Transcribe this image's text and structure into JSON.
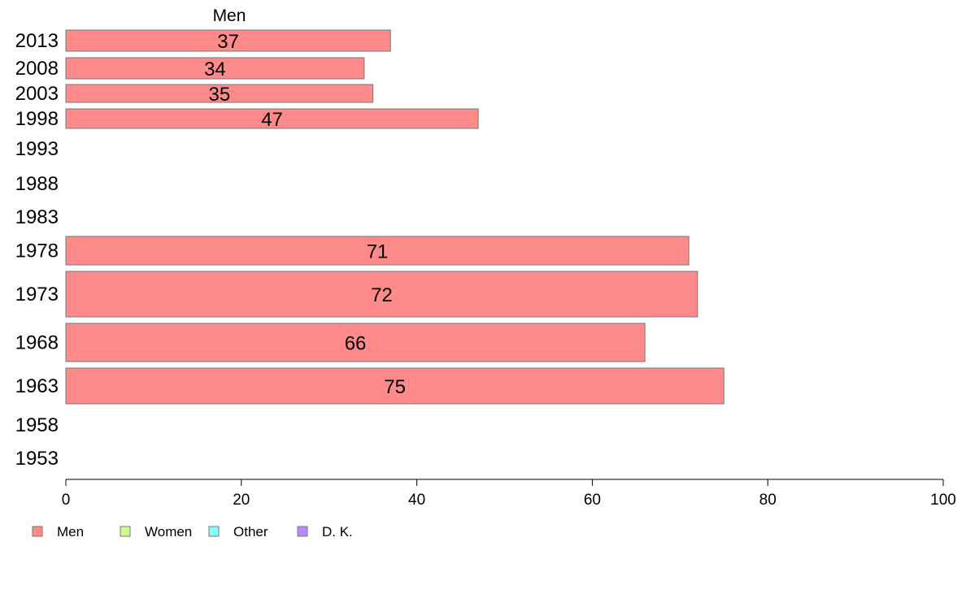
{
  "chart_data": {
    "type": "bar",
    "orientation": "horizontal",
    "categories": [
      "2013",
      "2008",
      "2003",
      "1998",
      "1993",
      "1988",
      "1983",
      "1978",
      "1973",
      "1968",
      "1963",
      "1958",
      "1953"
    ],
    "series": [
      {
        "name": "Men",
        "values": [
          37,
          34,
          35,
          47,
          null,
          null,
          null,
          71,
          72,
          66,
          75,
          null,
          null
        ],
        "color": "#ff8a8a"
      },
      {
        "name": "Women",
        "values": [
          null,
          null,
          null,
          null,
          null,
          null,
          null,
          null,
          null,
          null,
          null,
          null,
          null
        ],
        "color": "#ccff88"
      },
      {
        "name": "Other",
        "values": [
          null,
          null,
          null,
          null,
          null,
          null,
          null,
          null,
          null,
          null,
          null,
          null,
          null
        ],
        "color": "#88ffff"
      },
      {
        "name": "D. K.",
        "values": [
          null,
          null,
          null,
          null,
          null,
          null,
          null,
          null,
          null,
          null,
          null,
          null,
          null
        ],
        "color": "#bb88ff"
      }
    ],
    "data_labels": [
      "37",
      "34",
      "35",
      "47",
      "",
      "",
      "",
      "71",
      "72",
      "66",
      "75",
      "",
      ""
    ],
    "top_label": "Men",
    "xlim": [
      0,
      100
    ],
    "xticks": [
      "0",
      "20",
      "40",
      "60",
      "80",
      "100"
    ],
    "grid": false,
    "legend_position": "bottom-left",
    "bar_border_color": "#777777"
  }
}
